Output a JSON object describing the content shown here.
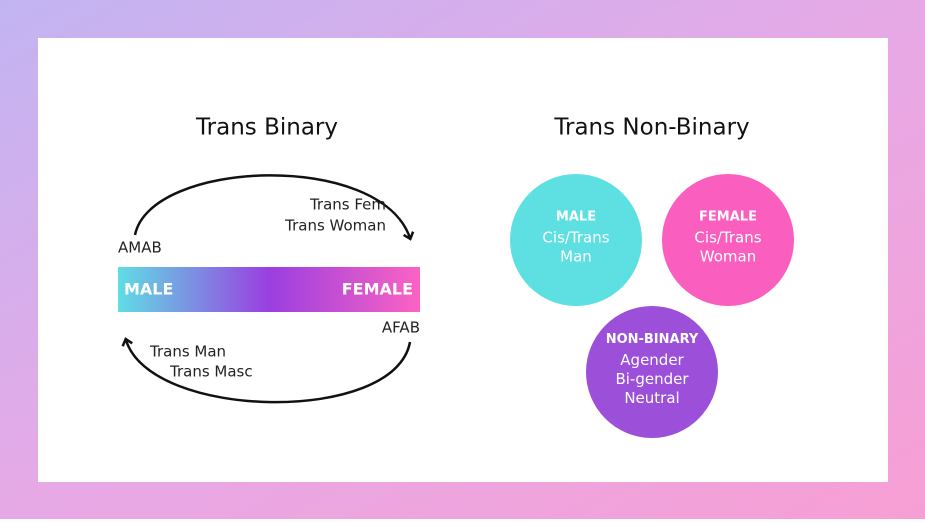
{
  "binary": {
    "title": "Trans Binary",
    "amab": "AMAB",
    "afab": "AFAB",
    "bar_left": "MALE",
    "bar_right": "FEMALE",
    "top_labels": [
      "Trans Fem",
      "Trans Woman"
    ],
    "bottom_labels": [
      "Trans Man",
      "Trans Masc"
    ]
  },
  "non_binary": {
    "title": "Trans Non-Binary",
    "circles": [
      {
        "heading": "MALE",
        "lines": [
          "Cis/Trans",
          "Man"
        ]
      },
      {
        "heading": "FEMALE",
        "lines": [
          "Cis/Trans",
          "Woman"
        ]
      },
      {
        "heading": "NON-BINARY",
        "lines": [
          "Agender",
          "Bi-gender",
          "Neutral"
        ]
      }
    ]
  }
}
